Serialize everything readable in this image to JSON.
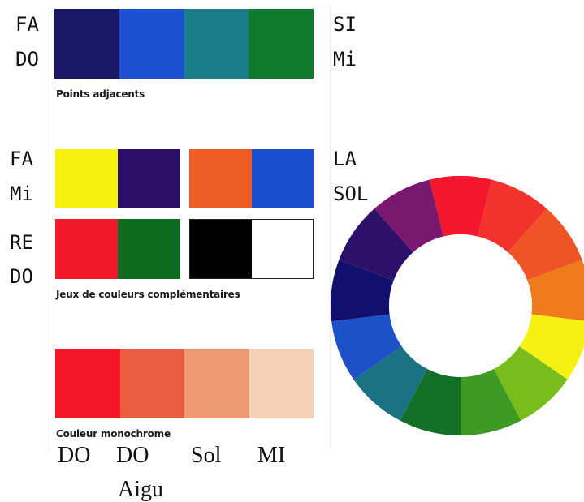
{
  "left_notes": {
    "r1a": "FA",
    "r1b": "DO",
    "r2a": "FA",
    "r2b": "Mi",
    "r3a": "RE",
    "r3b": "DO"
  },
  "right_notes": {
    "r1a": "SI",
    "r1b": "Mi",
    "r2a": "LA",
    "r2b": "SOL"
  },
  "captions": {
    "adjacent": "Points adjacents",
    "complementary": "Jeux de couleurs complémentaires",
    "monochrome": "Couleur monochrome"
  },
  "bottom_notes": {
    "n1": "DO",
    "n2": "DO",
    "n2b": "Aigu",
    "n3": "Sol",
    "n4": "MI"
  },
  "palettes": {
    "adjacent": [
      "#1b1868",
      "#1c50d2",
      "#1a7d8a",
      "#0f7a2e"
    ],
    "complementary_1": [
      "#f5f20f",
      "#2b0f66"
    ],
    "complementary_2": [
      "#ec5e23",
      "#1a50cf"
    ],
    "complementary_3": [
      "#f2192a",
      "#0c6b1e"
    ],
    "complementary_4": [
      "#000000",
      "#ffffff"
    ],
    "monochrome": [
      "#f11526",
      "#ea5d40",
      "#ee9b74",
      "#f4d0b6"
    ]
  },
  "color_wheel": {
    "segments": [
      "#f3162d",
      "#f2322c",
      "#ee5426",
      "#ee7c1c",
      "#f5f112",
      "#79bd1d",
      "#3f9a24",
      "#127029",
      "#1a7282",
      "#1e51c8",
      "#12106e",
      "#2c106a",
      "#7a1870"
    ]
  }
}
